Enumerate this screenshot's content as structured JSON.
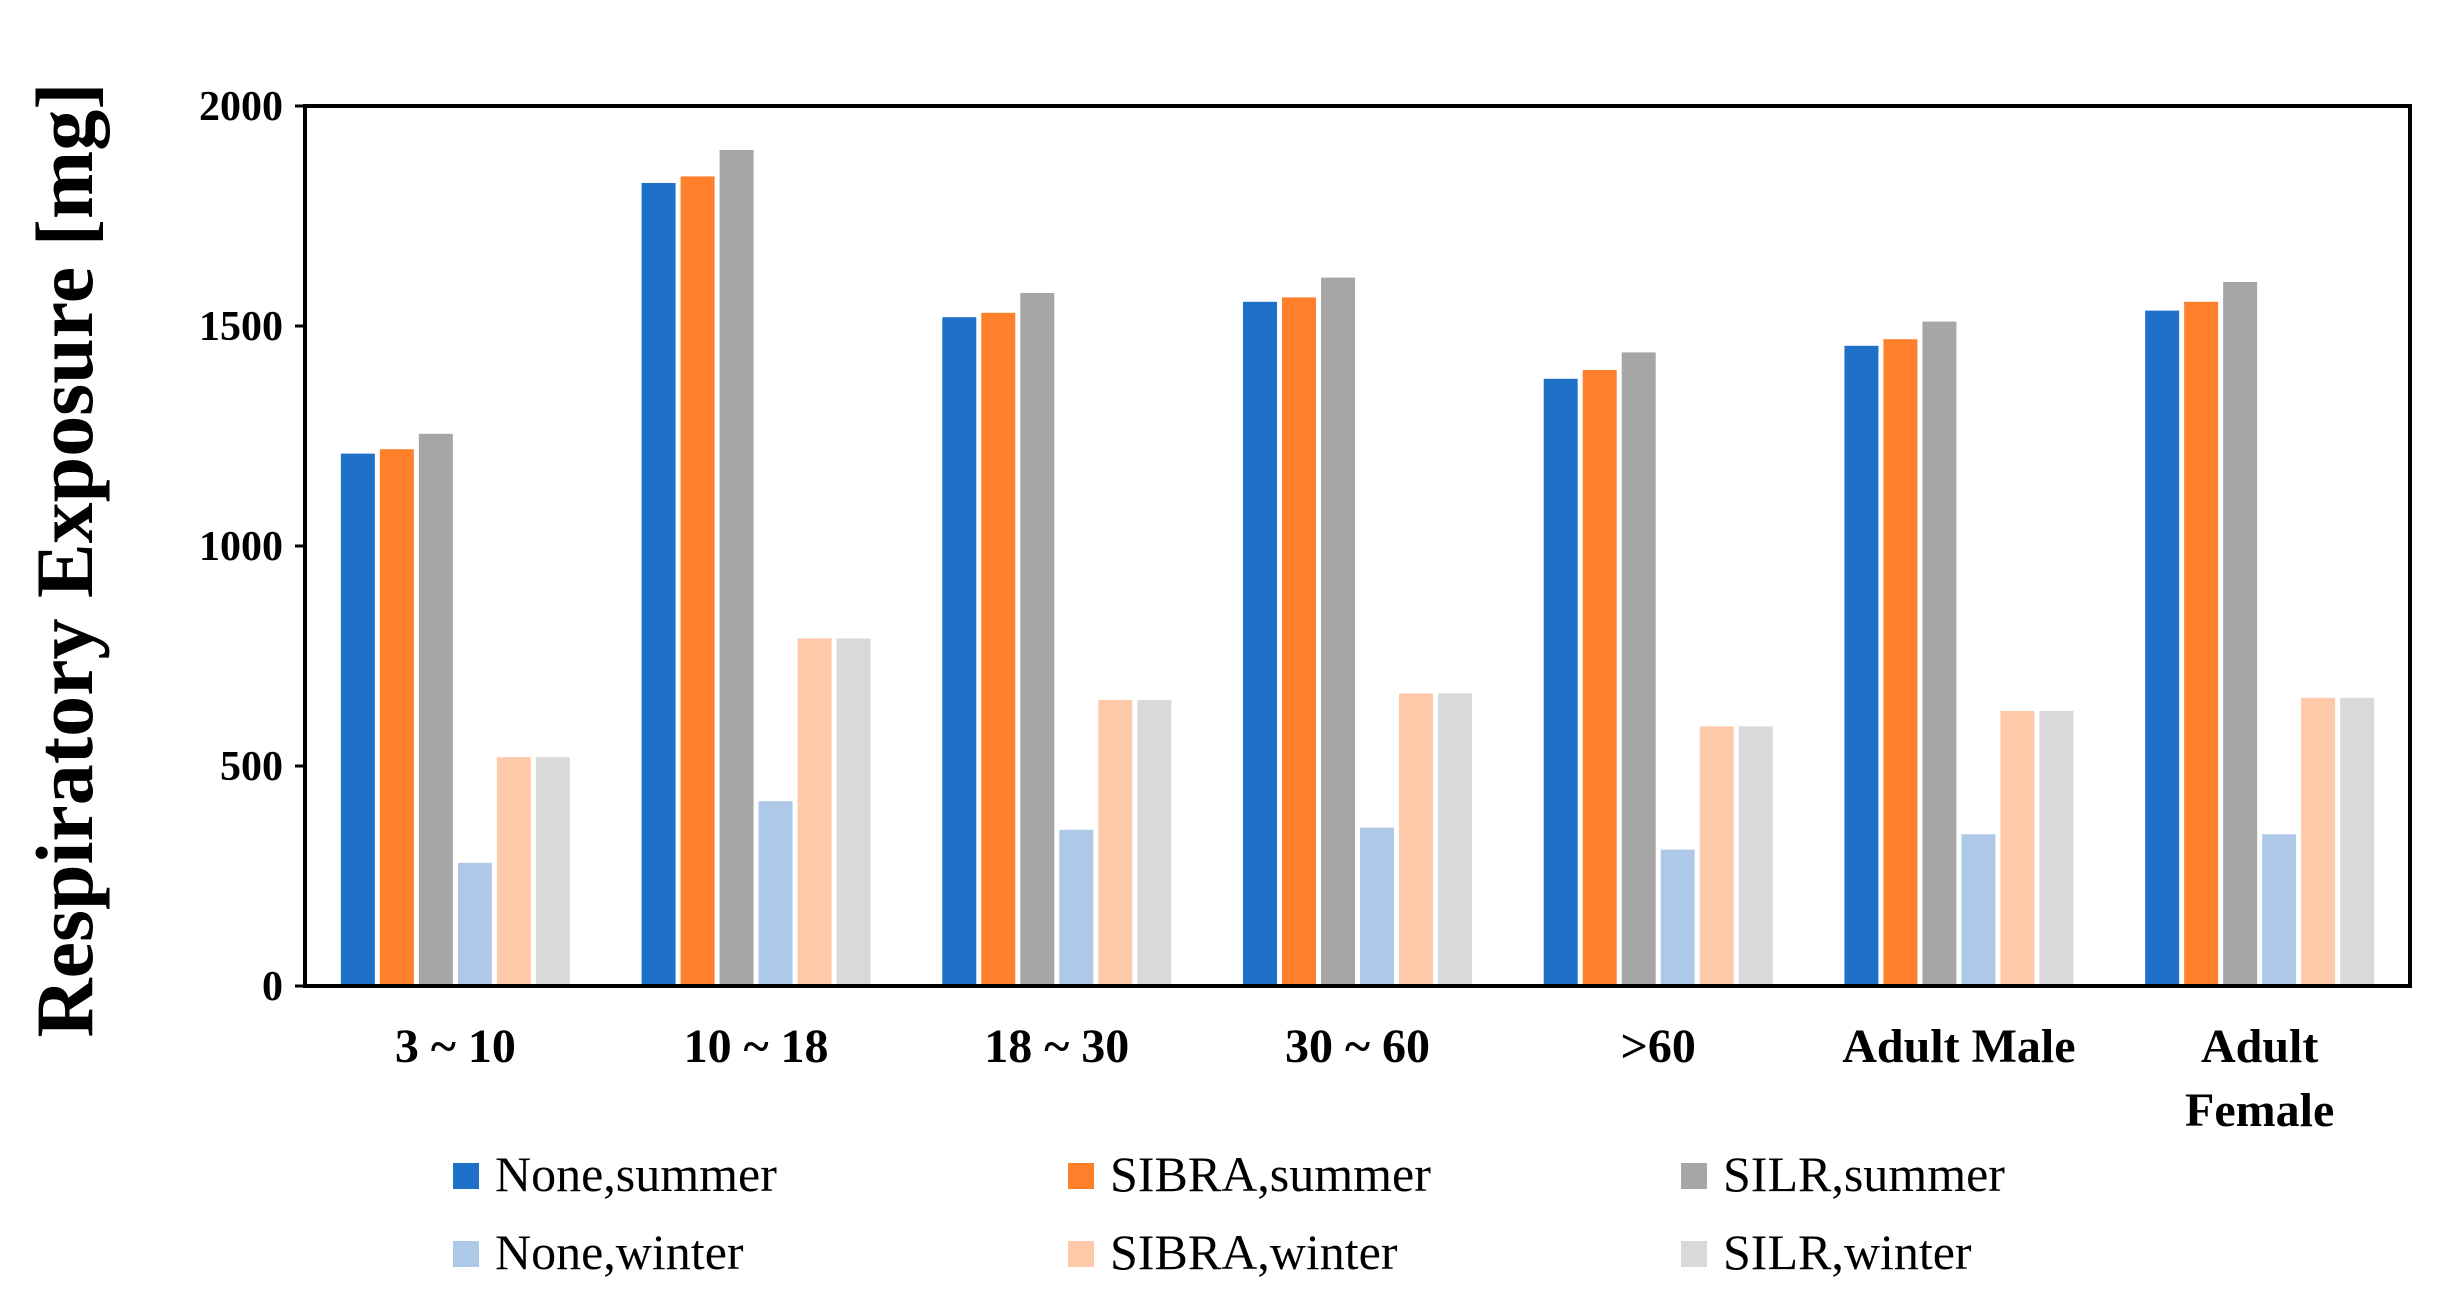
{
  "chart_data": {
    "type": "bar",
    "title": "",
    "xlabel": "",
    "ylabel": "Respiratory Exposure [mg]",
    "ylim": [
      0,
      2000
    ],
    "yticks": [
      0,
      500,
      1000,
      1500,
      2000
    ],
    "grid": false,
    "legend_position": "bottom",
    "categories": [
      [
        "3 ~ 10"
      ],
      [
        "10 ~ 18"
      ],
      [
        "18 ~ 30"
      ],
      [
        "30 ~ 60"
      ],
      [
        ">60"
      ],
      [
        "Adult Male"
      ],
      [
        "Adult",
        "Female"
      ]
    ],
    "series": [
      {
        "name": "None,summer",
        "color": "#1f70c8",
        "values": [
          1210,
          1825,
          1520,
          1555,
          1380,
          1455,
          1535
        ]
      },
      {
        "name": "SIBRA,summer",
        "color": "#ff7f2a",
        "values": [
          1220,
          1840,
          1530,
          1565,
          1400,
          1470,
          1555
        ]
      },
      {
        "name": "SILR,summer",
        "color": "#a6a6a6",
        "values": [
          1255,
          1900,
          1575,
          1610,
          1440,
          1510,
          1600
        ]
      },
      {
        "name": "None,winter",
        "color": "#aec8e8",
        "values": [
          280,
          420,
          355,
          360,
          310,
          345,
          345
        ]
      },
      {
        "name": "SIBRA,winter",
        "color": "#fdc9a8",
        "values": [
          520,
          790,
          650,
          665,
          590,
          625,
          655
        ]
      },
      {
        "name": "SILR,winter",
        "color": "#d9d9d9",
        "values": [
          520,
          790,
          650,
          665,
          590,
          625,
          655
        ]
      }
    ]
  }
}
